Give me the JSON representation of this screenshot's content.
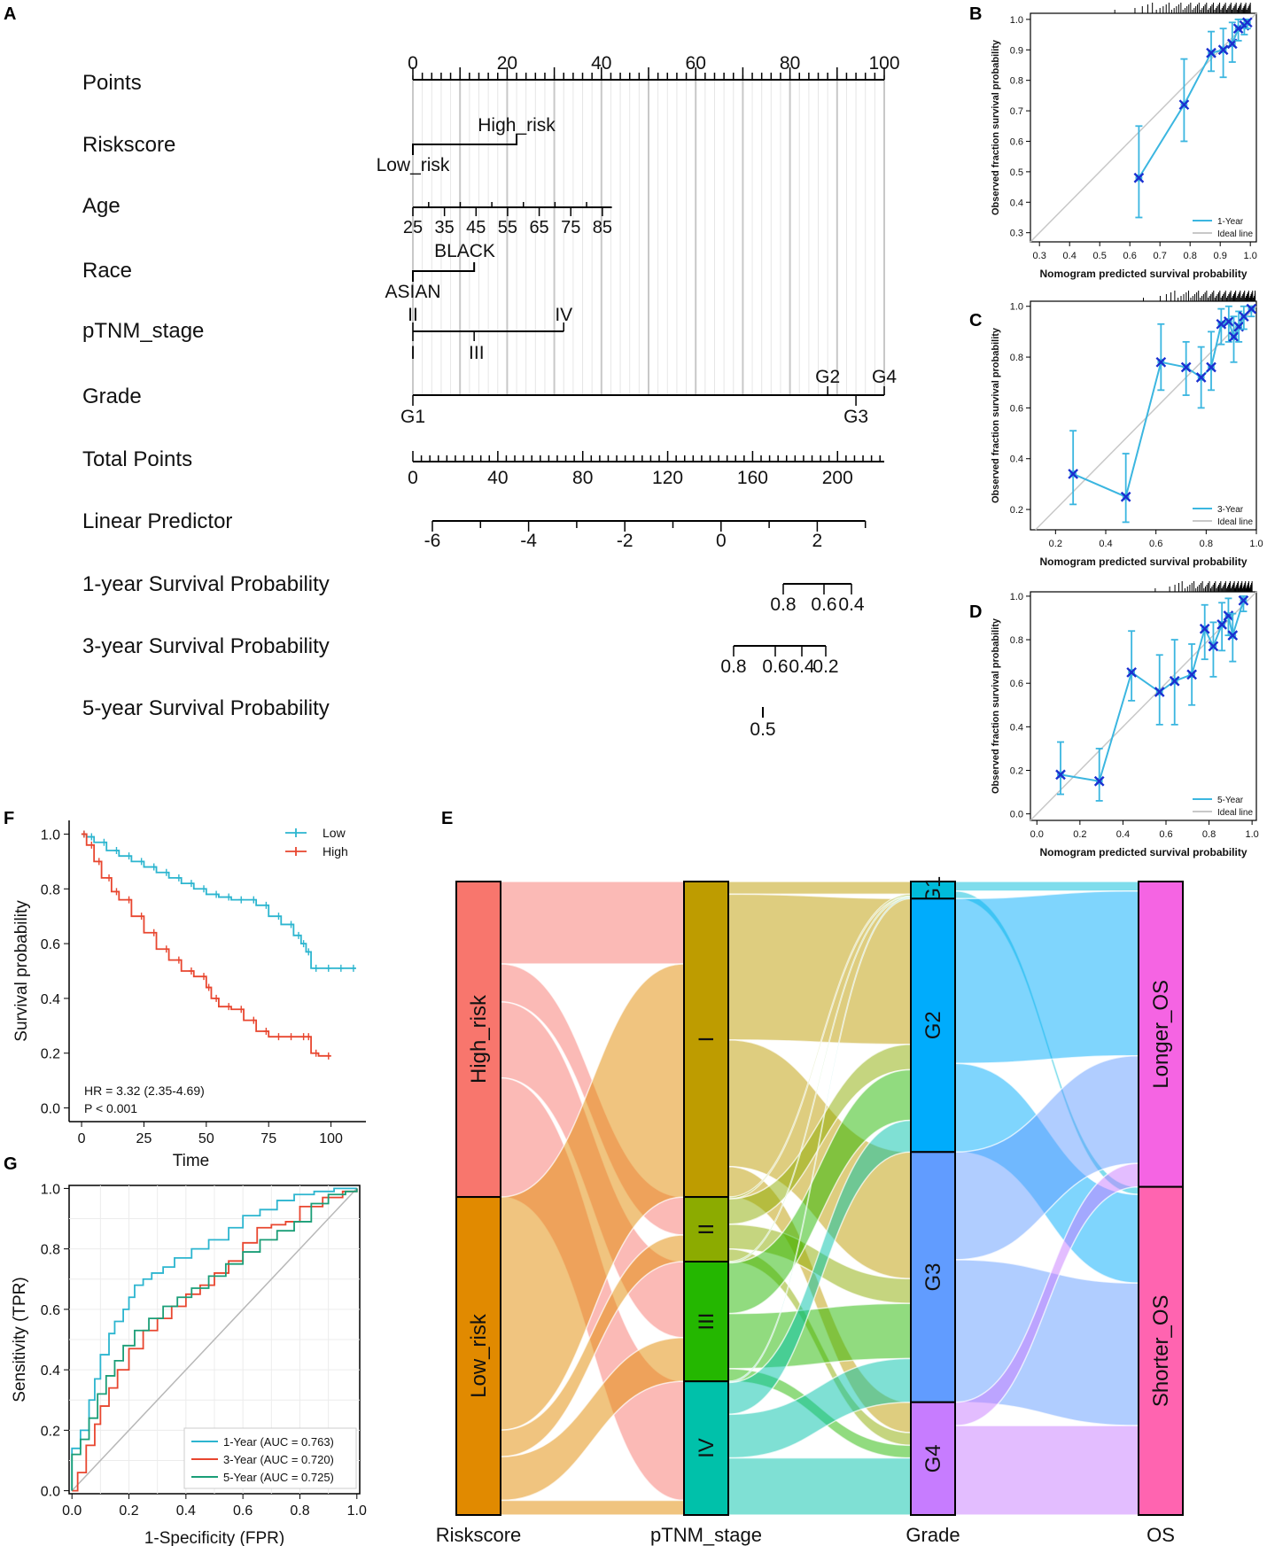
{
  "panel_labels": {
    "a": "A",
    "b": "B",
    "c": "C",
    "d": "D",
    "e": "E",
    "f": "F",
    "g": "G"
  },
  "chart_data": [
    {
      "id": "A",
      "type": "nomogram",
      "rows": [
        {
          "label": "Points",
          "ticks": [
            "0",
            "20",
            "40",
            "60",
            "80",
            "100"
          ]
        },
        {
          "label": "Riskscore",
          "levels": [
            "High_risk",
            "Low_risk"
          ]
        },
        {
          "label": "Age",
          "ticks": [
            "25",
            "35",
            "45",
            "55",
            "65",
            "75",
            "85"
          ]
        },
        {
          "label": "Race",
          "levels": [
            "BLACK",
            "ASIAN"
          ]
        },
        {
          "label": "pTNM_stage",
          "levels": [
            "II",
            "IV",
            "I",
            "III"
          ]
        },
        {
          "label": "Grade",
          "levels": [
            "G2",
            "G4",
            "G1",
            "G3"
          ]
        },
        {
          "label": "Total Points",
          "ticks": [
            "0",
            "40",
            "80",
            "120",
            "160",
            "200"
          ]
        },
        {
          "label": "Linear Predictor",
          "ticks": [
            "-6",
            "-4",
            "-2",
            "0",
            "2"
          ]
        },
        {
          "label": "1-year Survival Probability",
          "ticks": [
            "0.8",
            "0.6",
            "0.4"
          ]
        },
        {
          "label": "3-year Survival Probability",
          "ticks": [
            "0.8",
            "0.6",
            "0.4",
            "0.2"
          ]
        },
        {
          "label": "5-year Survival Probability",
          "ticks": [
            "0.5"
          ]
        }
      ]
    },
    {
      "id": "B",
      "type": "calibration",
      "xlabel": "Nomogram predicted survival probability",
      "ylabel": "Observed fraction survival probability",
      "xlim": [
        0.27,
        1.02
      ],
      "ylim": [
        0.27,
        1.02
      ],
      "xticks": [
        0.3,
        0.4,
        0.5,
        0.6,
        0.7,
        0.8,
        0.9,
        1.0
      ],
      "yticks": [
        0.3,
        0.4,
        0.5,
        0.6,
        0.7,
        0.8,
        0.9,
        1.0
      ],
      "points": [
        {
          "x": 0.63,
          "y": 0.48,
          "lo": 0.35,
          "hi": 0.65
        },
        {
          "x": 0.78,
          "y": 0.72,
          "lo": 0.6,
          "hi": 0.87
        },
        {
          "x": 0.87,
          "y": 0.89,
          "lo": 0.83,
          "hi": 0.96
        },
        {
          "x": 0.91,
          "y": 0.9,
          "lo": 0.81,
          "hi": 0.97
        },
        {
          "x": 0.94,
          "y": 0.92,
          "lo": 0.86,
          "hi": 0.99
        },
        {
          "x": 0.96,
          "y": 0.97,
          "lo": 0.93,
          "hi": 1.0
        },
        {
          "x": 0.98,
          "y": 0.98,
          "lo": 0.95,
          "hi": 1.0
        },
        {
          "x": 0.99,
          "y": 0.99,
          "lo": 0.97,
          "hi": 1.0
        }
      ],
      "legend": [
        "1-Year",
        "Ideal line"
      ]
    },
    {
      "id": "C",
      "type": "calibration",
      "xlabel": "Nomogram predicted survival probability",
      "ylabel": "Observed fraction survival probability",
      "xlim": [
        0.1,
        1.0
      ],
      "ylim": [
        0.12,
        1.02
      ],
      "xticks": [
        0.2,
        0.4,
        0.6,
        0.8,
        1.0
      ],
      "yticks": [
        0.2,
        0.4,
        0.6,
        0.8,
        1.0
      ],
      "points": [
        {
          "x": 0.27,
          "y": 0.34,
          "lo": 0.22,
          "hi": 0.51
        },
        {
          "x": 0.48,
          "y": 0.25,
          "lo": 0.15,
          "hi": 0.42
        },
        {
          "x": 0.62,
          "y": 0.78,
          "lo": 0.67,
          "hi": 0.93
        },
        {
          "x": 0.72,
          "y": 0.76,
          "lo": 0.65,
          "hi": 0.86
        },
        {
          "x": 0.78,
          "y": 0.72,
          "lo": 0.6,
          "hi": 0.84
        },
        {
          "x": 0.82,
          "y": 0.76,
          "lo": 0.67,
          "hi": 0.9
        },
        {
          "x": 0.86,
          "y": 0.93,
          "lo": 0.85,
          "hi": 0.99
        },
        {
          "x": 0.89,
          "y": 0.94,
          "lo": 0.86,
          "hi": 1.0
        },
        {
          "x": 0.91,
          "y": 0.88,
          "lo": 0.78,
          "hi": 0.96
        },
        {
          "x": 0.93,
          "y": 0.92,
          "lo": 0.86,
          "hi": 0.98
        },
        {
          "x": 0.95,
          "y": 0.96,
          "lo": 0.91,
          "hi": 1.0
        },
        {
          "x": 0.98,
          "y": 0.99,
          "lo": 0.96,
          "hi": 1.0
        }
      ],
      "legend": [
        "3-Year",
        "Ideal line"
      ]
    },
    {
      "id": "D",
      "type": "calibration",
      "xlabel": "Nomogram predicted survival probability",
      "ylabel": "Observed fraction survival probability",
      "xlim": [
        -0.03,
        1.02
      ],
      "ylim": [
        -0.03,
        1.02
      ],
      "xticks": [
        0.0,
        0.2,
        0.4,
        0.6,
        0.8,
        1.0
      ],
      "yticks": [
        0.0,
        0.2,
        0.4,
        0.6,
        0.8,
        1.0
      ],
      "points": [
        {
          "x": 0.11,
          "y": 0.18,
          "lo": 0.09,
          "hi": 0.33
        },
        {
          "x": 0.29,
          "y": 0.15,
          "lo": 0.06,
          "hi": 0.3
        },
        {
          "x": 0.44,
          "y": 0.65,
          "lo": 0.52,
          "hi": 0.84
        },
        {
          "x": 0.57,
          "y": 0.56,
          "lo": 0.41,
          "hi": 0.73
        },
        {
          "x": 0.64,
          "y": 0.61,
          "lo": 0.41,
          "hi": 0.8
        },
        {
          "x": 0.72,
          "y": 0.64,
          "lo": 0.5,
          "hi": 0.78
        },
        {
          "x": 0.78,
          "y": 0.85,
          "lo": 0.71,
          "hi": 0.96
        },
        {
          "x": 0.82,
          "y": 0.77,
          "lo": 0.63,
          "hi": 0.88
        },
        {
          "x": 0.86,
          "y": 0.87,
          "lo": 0.75,
          "hi": 0.97
        },
        {
          "x": 0.89,
          "y": 0.91,
          "lo": 0.82,
          "hi": 0.99
        },
        {
          "x": 0.91,
          "y": 0.82,
          "lo": 0.7,
          "hi": 0.92
        },
        {
          "x": 0.96,
          "y": 0.98,
          "lo": 0.93,
          "hi": 1.0
        }
      ],
      "legend": [
        "5-Year",
        "Ideal line"
      ]
    },
    {
      "id": "E",
      "type": "alluvial",
      "axes": [
        "Riskscore",
        "pTNM_stage",
        "Grade",
        "OS"
      ],
      "strata": [
        {
          "axis": 0,
          "labels": [
            "High_risk",
            "Low_risk"
          ],
          "fractions": [
            0.498,
            0.502
          ],
          "colors": [
            "#F8766D",
            "#E18A00"
          ]
        },
        {
          "axis": 1,
          "labels": [
            "I",
            "II",
            "III",
            "IV"
          ],
          "fractions": [
            0.498,
            0.102,
            0.189,
            0.211
          ],
          "colors": [
            "#BE9C00",
            "#8CAB00",
            "#24B700",
            "#00C1AA"
          ]
        },
        {
          "axis": 2,
          "labels": [
            "G1",
            "G2",
            "G3",
            "G4"
          ],
          "fractions": [
            0.027,
            0.4,
            0.395,
            0.178
          ],
          "colors": [
            "#00BBDA",
            "#00ACFC",
            "#619CFF",
            "#C77CFF"
          ]
        },
        {
          "axis": 3,
          "labels": [
            "Longer_OS",
            "Shorter_OS"
          ],
          "fractions": [
            0.482,
            0.518
          ],
          "colors": [
            "#F564E3",
            "#FF64B0"
          ]
        }
      ]
    },
    {
      "id": "F",
      "type": "line",
      "xlabel": "Time",
      "ylabel": "Survival probability",
      "xlim": [
        -5,
        114
      ],
      "ylim": [
        -0.05,
        1.05
      ],
      "xticks": [
        0,
        25,
        50,
        75,
        100
      ],
      "yticks": [
        0.0,
        0.2,
        0.4,
        0.6,
        0.8,
        1.0
      ],
      "series": [
        {
          "name": "Low",
          "color": "#2CB5CF",
          "x": [
            0,
            2,
            5,
            10,
            15,
            20,
            25,
            30,
            35,
            40,
            45,
            50,
            55,
            60,
            65,
            70,
            75,
            80,
            85,
            88,
            90,
            92,
            95,
            100,
            105,
            110
          ],
          "y": [
            1.0,
            0.99,
            0.97,
            0.94,
            0.92,
            0.9,
            0.88,
            0.86,
            0.84,
            0.82,
            0.8,
            0.78,
            0.77,
            0.76,
            0.76,
            0.74,
            0.7,
            0.67,
            0.63,
            0.6,
            0.57,
            0.51,
            0.51,
            0.51,
            0.51,
            0.51
          ]
        },
        {
          "name": "High",
          "color": "#E8462F",
          "x": [
            0,
            2,
            5,
            8,
            12,
            15,
            20,
            25,
            30,
            35,
            40,
            45,
            50,
            52,
            55,
            60,
            65,
            70,
            75,
            80,
            85,
            90,
            92,
            95,
            100
          ],
          "y": [
            1.0,
            0.96,
            0.9,
            0.84,
            0.79,
            0.76,
            0.7,
            0.64,
            0.58,
            0.54,
            0.5,
            0.48,
            0.44,
            0.4,
            0.37,
            0.36,
            0.32,
            0.28,
            0.26,
            0.26,
            0.26,
            0.26,
            0.2,
            0.19,
            0.19
          ]
        }
      ],
      "annotations": [
        "HR = 3.32 (2.35-4.69)",
        "P < 0.001"
      ]
    },
    {
      "id": "G",
      "type": "line",
      "xlabel": "1-Specificity (FPR)",
      "ylabel": "Sensitivity (TPR)",
      "xlim": [
        -0.01,
        1.01
      ],
      "ylim": [
        -0.01,
        1.01
      ],
      "xticks": [
        0.0,
        0.2,
        0.4,
        0.6,
        0.8,
        1.0
      ],
      "yticks": [
        0.0,
        0.2,
        0.4,
        0.6,
        0.8,
        1.0
      ],
      "series": [
        {
          "name": "1-Year (AUC = 0.763)",
          "color": "#2CB5CF",
          "x": [
            0,
            0,
            0.03,
            0.06,
            0.08,
            0.1,
            0.13,
            0.15,
            0.18,
            0.2,
            0.22,
            0.25,
            0.28,
            0.32,
            0.36,
            0.42,
            0.48,
            0.55,
            0.6,
            0.66,
            0.72,
            0.78,
            0.85,
            0.92,
            1.0
          ],
          "y": [
            0,
            0.14,
            0.2,
            0.3,
            0.37,
            0.45,
            0.52,
            0.56,
            0.6,
            0.64,
            0.68,
            0.7,
            0.72,
            0.74,
            0.77,
            0.8,
            0.83,
            0.87,
            0.91,
            0.93,
            0.96,
            0.98,
            0.99,
            1.0,
            1.0
          ]
        },
        {
          "name": "3-Year (AUC = 0.720)",
          "color": "#E8462F",
          "x": [
            0,
            0.02,
            0.05,
            0.08,
            0.1,
            0.13,
            0.16,
            0.2,
            0.25,
            0.3,
            0.35,
            0.4,
            0.45,
            0.5,
            0.55,
            0.6,
            0.65,
            0.7,
            0.75,
            0.8,
            0.88,
            0.95,
            1.0
          ],
          "y": [
            0,
            0.06,
            0.15,
            0.22,
            0.28,
            0.34,
            0.4,
            0.47,
            0.53,
            0.57,
            0.61,
            0.65,
            0.68,
            0.72,
            0.76,
            0.82,
            0.87,
            0.88,
            0.89,
            0.94,
            0.97,
            0.99,
            1.0
          ]
        },
        {
          "name": "5-Year (AUC = 0.725)",
          "color": "#1A9E77",
          "x": [
            0,
            0,
            0.03,
            0.06,
            0.09,
            0.12,
            0.15,
            0.18,
            0.22,
            0.27,
            0.32,
            0.37,
            0.42,
            0.48,
            0.54,
            0.6,
            0.66,
            0.72,
            0.78,
            0.84,
            0.9,
            0.96,
            1.0
          ],
          "y": [
            0,
            0.12,
            0.17,
            0.24,
            0.32,
            0.38,
            0.43,
            0.48,
            0.53,
            0.57,
            0.61,
            0.64,
            0.67,
            0.71,
            0.75,
            0.79,
            0.83,
            0.86,
            0.89,
            0.95,
            0.98,
            0.99,
            1.0
          ]
        }
      ]
    }
  ]
}
